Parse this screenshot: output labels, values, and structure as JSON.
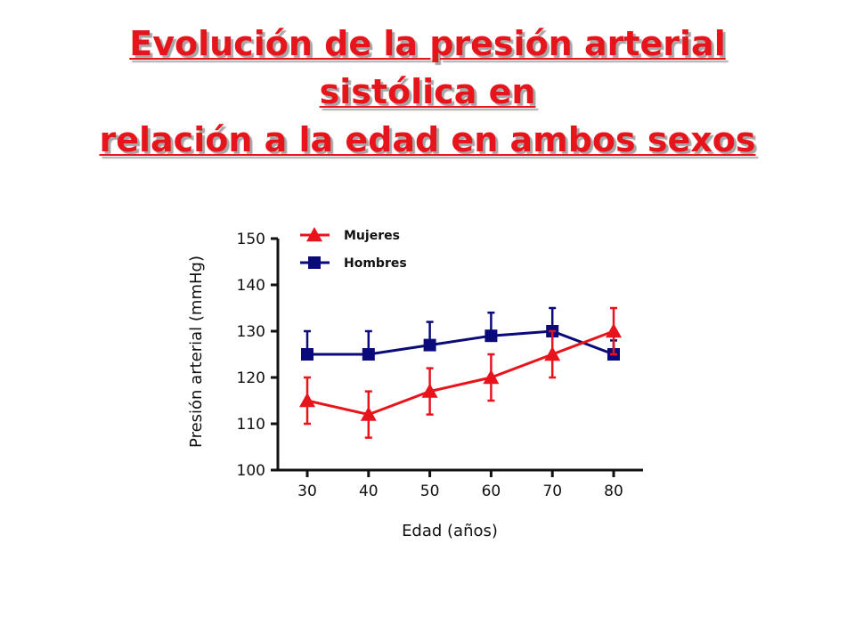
{
  "title": {
    "line1": "Evolución de la presión arterial",
    "line2": "sistólica en",
    "line3": "relación a la edad en ambos sexos"
  },
  "colors": {
    "title": "#e8141b",
    "mujeres": "#e8141b",
    "hombres": "#0a0a7a"
  },
  "chart_data": {
    "type": "line",
    "title": "",
    "xlabel": "Edad (años)",
    "ylabel": "Presión arterial (mmHg)",
    "x": [
      30,
      40,
      50,
      60,
      70,
      80
    ],
    "xlim": [
      25,
      85
    ],
    "ylim": [
      100,
      150
    ],
    "yticks": [
      100,
      110,
      120,
      130,
      140,
      150
    ],
    "xticks": [
      30,
      40,
      50,
      60,
      70,
      80
    ],
    "grid": false,
    "legend_position": "top-left",
    "series": [
      {
        "name": "Mujeres",
        "marker": "triangle",
        "color": "#e8141b",
        "values": [
          115,
          112,
          117,
          120,
          125,
          130
        ],
        "error": [
          5,
          5,
          5,
          5,
          5,
          5
        ]
      },
      {
        "name": "Hombres",
        "marker": "square",
        "color": "#0a0a7a",
        "values": [
          125,
          125,
          127,
          129,
          130,
          125
        ],
        "error": [
          5,
          5,
          5,
          5,
          5,
          3
        ]
      }
    ]
  }
}
